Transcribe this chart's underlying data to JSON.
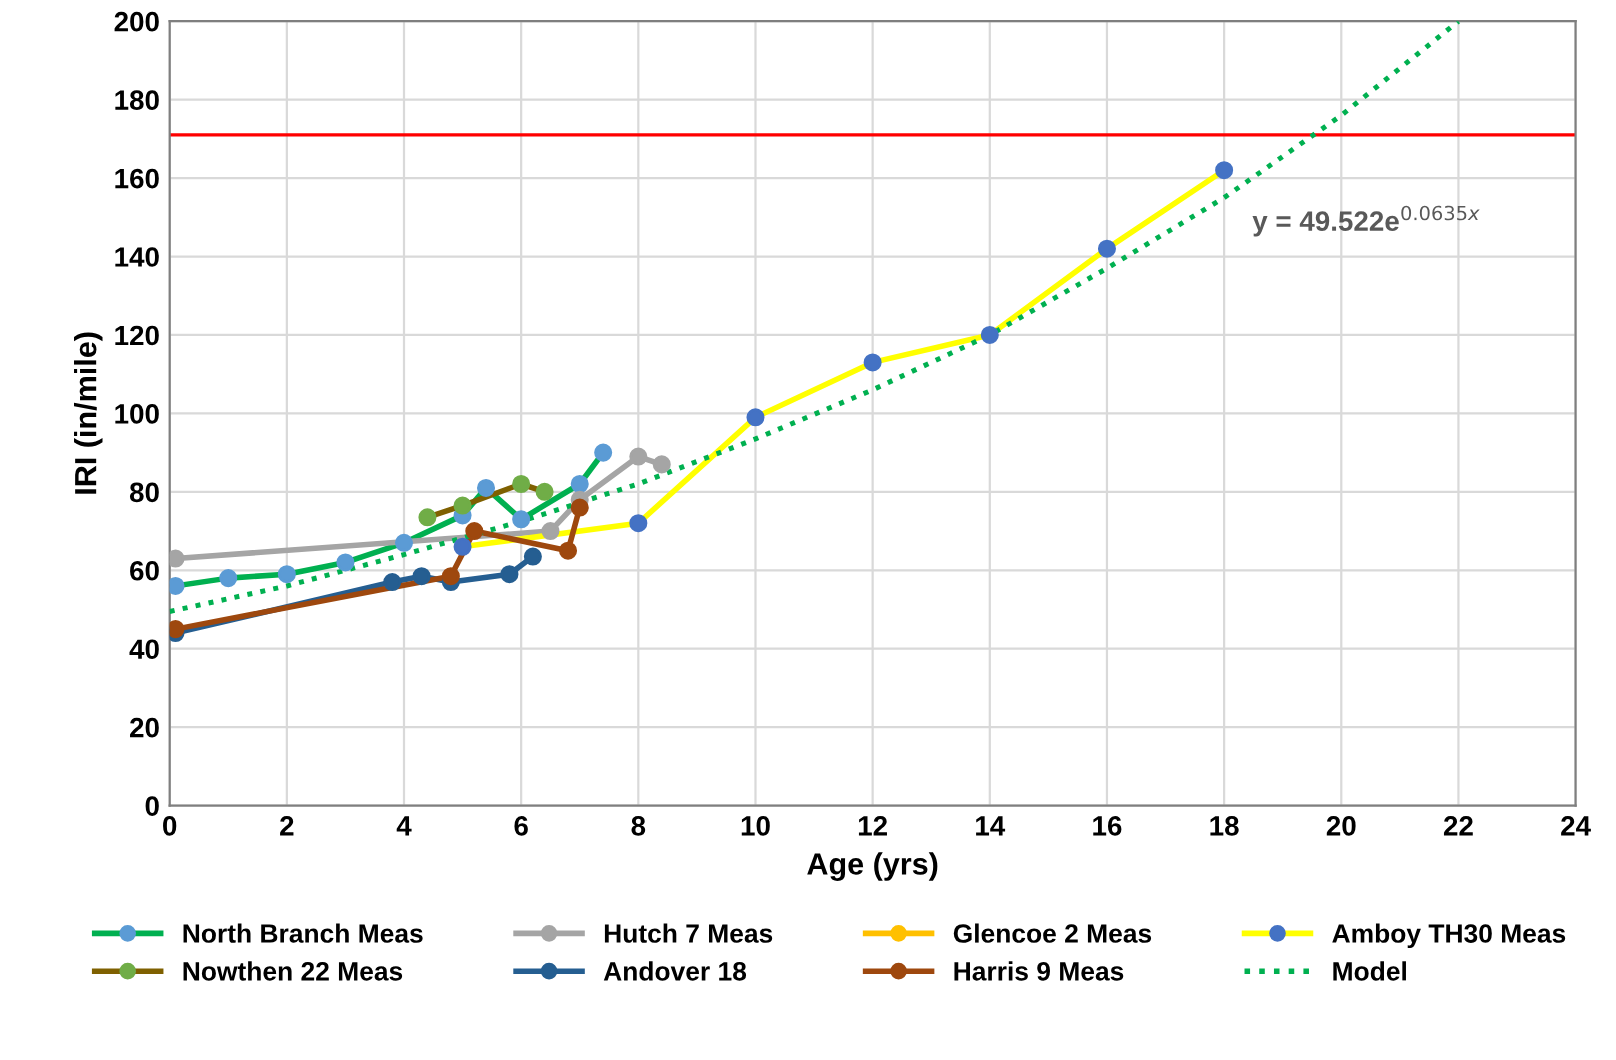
{
  "chart_data": {
    "type": "line",
    "xlabel": "Age (yrs)",
    "ylabel": "IRI (in/mile)",
    "xlim": [
      0,
      24
    ],
    "xticks": [
      0,
      2,
      4,
      6,
      8,
      10,
      12,
      14,
      16,
      18,
      20,
      22,
      24
    ],
    "ylim": [
      0,
      200
    ],
    "yticks": [
      0,
      20,
      40,
      60,
      80,
      100,
      120,
      140,
      160,
      180,
      200
    ],
    "grid": true,
    "legend": "bottom",
    "marker": "circle",
    "series": [
      {
        "name": "North Branch Meas",
        "color": "#00b050",
        "colors": [
          "#5b9bd5",
          "#5b9bd5",
          "#5b9bd5",
          "#5b9bd5",
          "#5b9bd5",
          "#5b9bd5",
          "#5b9bd5",
          "#5b9bd5",
          "#5b9bd5",
          "#5b9bd5"
        ],
        "x": [
          0.1,
          1,
          2,
          3,
          4,
          5,
          5.4,
          6,
          7,
          7.4
        ],
        "values": [
          56,
          58,
          59,
          62,
          67,
          74,
          81,
          73,
          82,
          90
        ]
      },
      {
        "name": "Hutch 7 Meas",
        "color": "#a5a5a5",
        "x": [
          0.1,
          6.5,
          7,
          8,
          8.4
        ],
        "values": [
          63,
          70,
          78,
          89,
          87
        ]
      },
      {
        "name": "Glencoe 2 Meas",
        "color": "#ffc000"
      },
      {
        "name": "Amboy TH30 Meas",
        "color": "#ffff00",
        "colors": [
          "#4472c4",
          "#4472c4",
          "#4472c4",
          "#4472c4",
          "#4472c4",
          "#4472c4",
          "#4472c4"
        ],
        "x": [
          5,
          8,
          10,
          12,
          14,
          16,
          18
        ],
        "values": [
          66,
          72,
          99,
          113,
          120,
          142,
          162
        ]
      },
      {
        "name": "Nowthen 22 Meas",
        "color": "#7f6000",
        "colors": [
          "#70ad47",
          "#70ad47",
          "#70ad47",
          "#70ad47"
        ],
        "x": [
          4.4,
          5,
          6,
          6.4
        ],
        "values": [
          73.5,
          76.5,
          82,
          80
        ]
      },
      {
        "name": "Andover 18",
        "color": "#255e91",
        "x": [
          0.1,
          3.8,
          4.3,
          4.8,
          5.8,
          6.2
        ],
        "values": [
          44,
          57,
          58.5,
          57,
          59,
          63.5
        ]
      },
      {
        "name": "Harris 9 Meas",
        "color": "#9e480e",
        "x": [
          0.1,
          4.8,
          5.2,
          6.8,
          7
        ],
        "values": [
          45,
          58.5,
          70,
          65,
          76
        ]
      },
      {
        "name": "Model",
        "color": "#00b050",
        "marker": "none",
        "line_style": "dotted",
        "x": [
          0,
          2,
          4,
          6,
          8,
          10,
          12,
          14,
          16,
          18,
          20,
          22
        ],
        "values": [
          49.5,
          56,
          64,
          72.5,
          82,
          93.5,
          106,
          120,
          137,
          155,
          176,
          200
        ]
      }
    ],
    "ref_lines": [
      {
        "axis": "y",
        "value": 171,
        "color": "#ff0000"
      }
    ],
    "annotations": [
      "y = 49.522e$^{0.0635x}$"
    ]
  }
}
